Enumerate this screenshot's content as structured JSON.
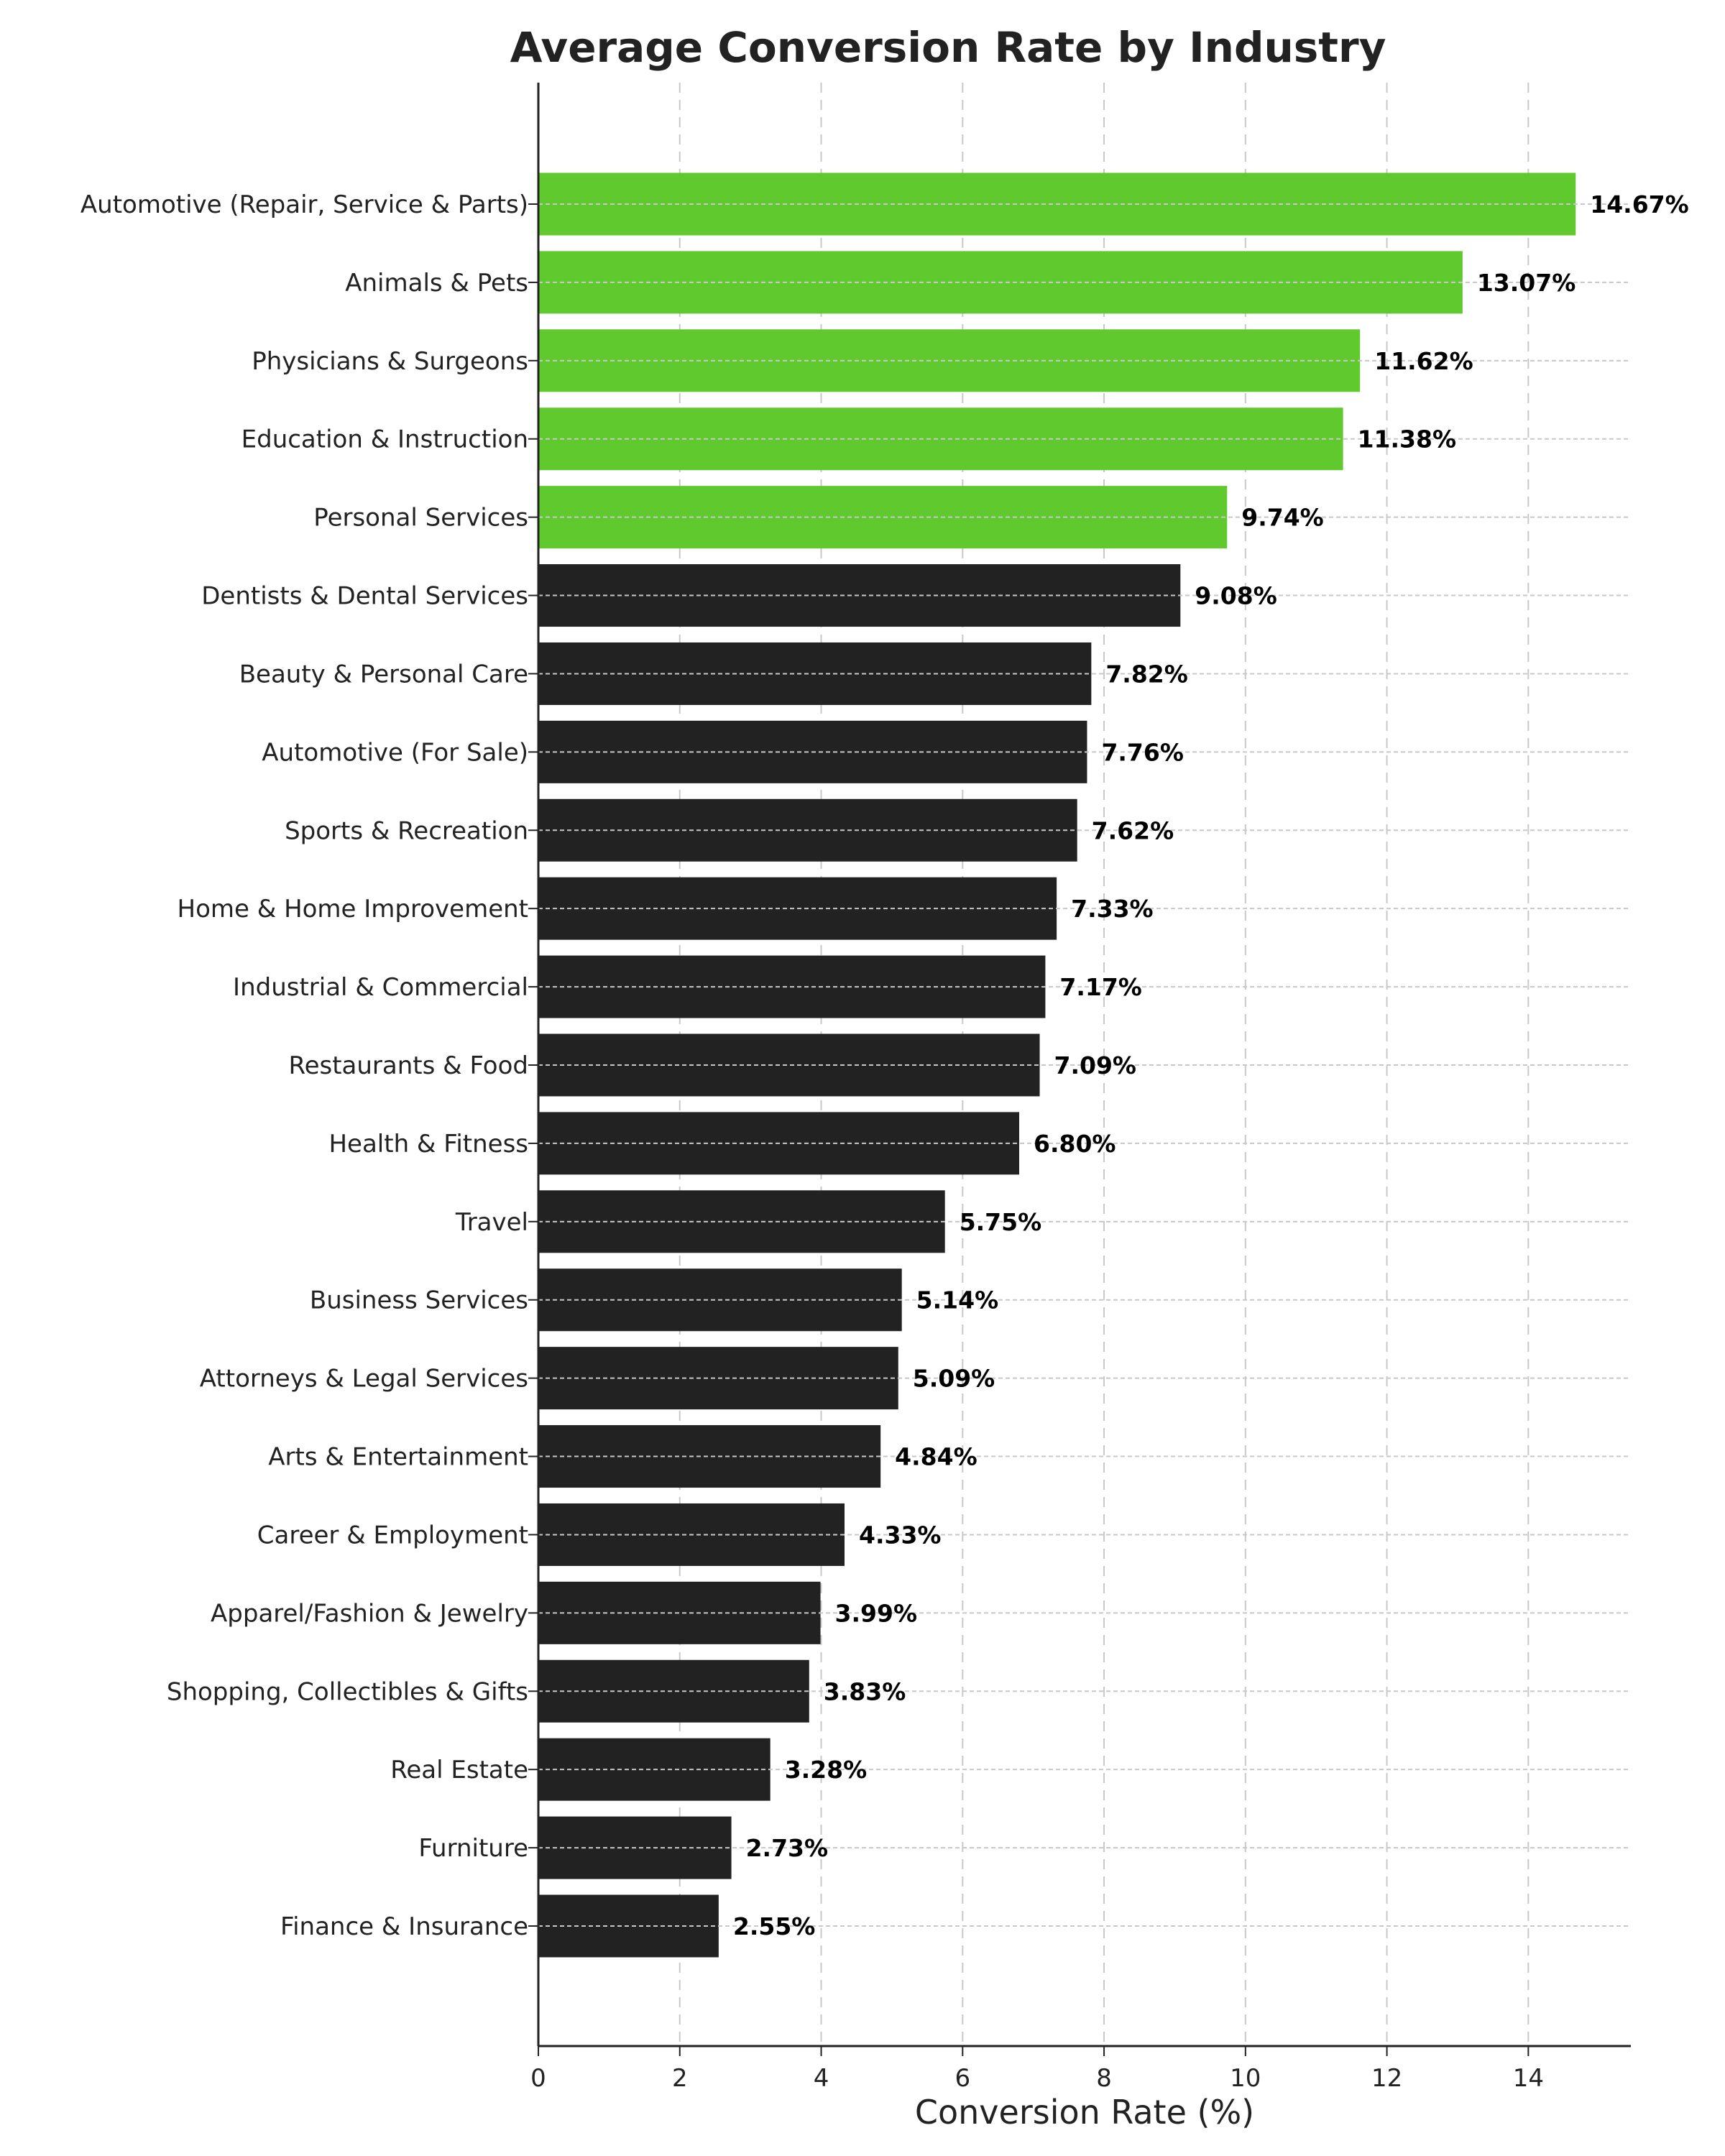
{
  "chart_data": {
    "type": "bar",
    "orientation": "horizontal",
    "title": "Average Conversion Rate by Industry",
    "xlabel": "Conversion Rate (%)",
    "ylabel": "",
    "xlim": [
      0,
      15.45
    ],
    "xticks": [
      0,
      2,
      4,
      6,
      8,
      10,
      12,
      14
    ],
    "grid": true,
    "categories": [
      "Automotive (Repair, Service & Parts)",
      "Animals & Pets",
      "Physicians & Surgeons",
      "Education & Instruction",
      "Personal Services",
      "Dentists & Dental Services",
      "Beauty & Personal Care",
      "Automotive (For Sale)",
      "Sports & Recreation",
      "Home & Home Improvement",
      "Industrial & Commercial",
      "Restaurants & Food",
      "Health & Fitness",
      "Travel",
      "Business Services",
      "Attorneys & Legal Services",
      "Arts & Entertainment",
      "Career & Employment",
      "Apparel/Fashion & Jewelry",
      "Shopping, Collectibles & Gifts",
      "Real Estate",
      "Furniture",
      "Finance & Insurance"
    ],
    "values": [
      14.67,
      13.07,
      11.62,
      11.38,
      9.74,
      9.08,
      7.82,
      7.76,
      7.62,
      7.33,
      7.17,
      7.09,
      6.8,
      5.75,
      5.14,
      5.09,
      4.84,
      4.33,
      3.99,
      3.83,
      3.28,
      2.73,
      2.55
    ],
    "value_labels": [
      "14.67%",
      "13.07%",
      "11.62%",
      "11.38%",
      "9.74%",
      "9.08%",
      "7.82%",
      "7.76%",
      "7.62%",
      "7.33%",
      "7.17%",
      "7.09%",
      "6.80%",
      "5.75%",
      "5.14%",
      "5.09%",
      "4.84%",
      "4.33%",
      "3.99%",
      "3.83%",
      "3.28%",
      "2.73%",
      "2.55%"
    ],
    "highlight_top_n": 5,
    "colors": {
      "highlight": "#5fc92e",
      "default": "#222222",
      "grid": "#c8c8c8",
      "axis": "#222222"
    }
  }
}
